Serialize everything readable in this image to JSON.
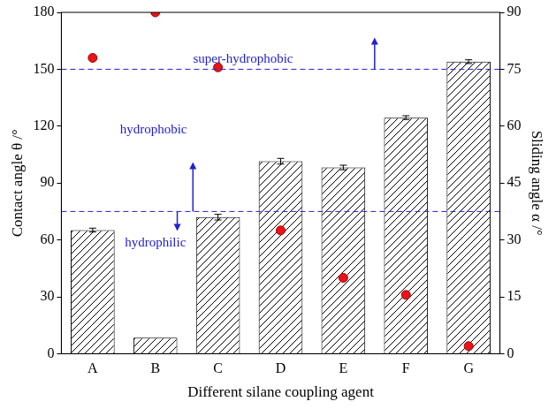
{
  "chart_data": {
    "type": "bar",
    "x_label": "Different silane coupling agent",
    "categories": [
      "A",
      "B",
      "C",
      "D",
      "E",
      "F",
      "G"
    ],
    "series": [
      {
        "name": "Contact angle θ /°",
        "type": "bar",
        "color": "#000000",
        "values": [
          65.2,
          8.5,
          72.0,
          101.5,
          98.2,
          124.5,
          154.0
        ],
        "errors": [
          1.0,
          0,
          1.5,
          1.5,
          1.2,
          1.0,
          1.0
        ]
      },
      {
        "name": "Sliding angle α /°",
        "type": "scatter",
        "axis": "y2",
        "marker": "circle",
        "color": "#e8141a",
        "values": [
          78.0,
          90.0,
          75.5,
          32.5,
          20.0,
          15.5,
          2.0
        ]
      }
    ],
    "ylim": [
      0,
      180
    ],
    "yticks": [
      0,
      30,
      60,
      90,
      120,
      150,
      180
    ],
    "y2lim": [
      0,
      90
    ],
    "y2ticks": [
      0,
      15,
      30,
      45,
      60,
      75,
      90
    ],
    "grid": false,
    "reference_lines": [
      {
        "value": 75,
        "color": "#2020d0",
        "line_style": "dashed"
      },
      {
        "value": 150,
        "color": "#2020d0",
        "line_style": "dashed"
      }
    ],
    "annotations": [
      {
        "text": "super-hydrophobic",
        "at": 150,
        "direction": "up",
        "color": "#2020d0"
      },
      {
        "text": "hydrophobic",
        "at": 75,
        "direction": "up",
        "color": "#2020d0"
      },
      {
        "text": "hydrophilic",
        "at": 75,
        "direction": "down",
        "color": "#2020d0"
      }
    ]
  }
}
